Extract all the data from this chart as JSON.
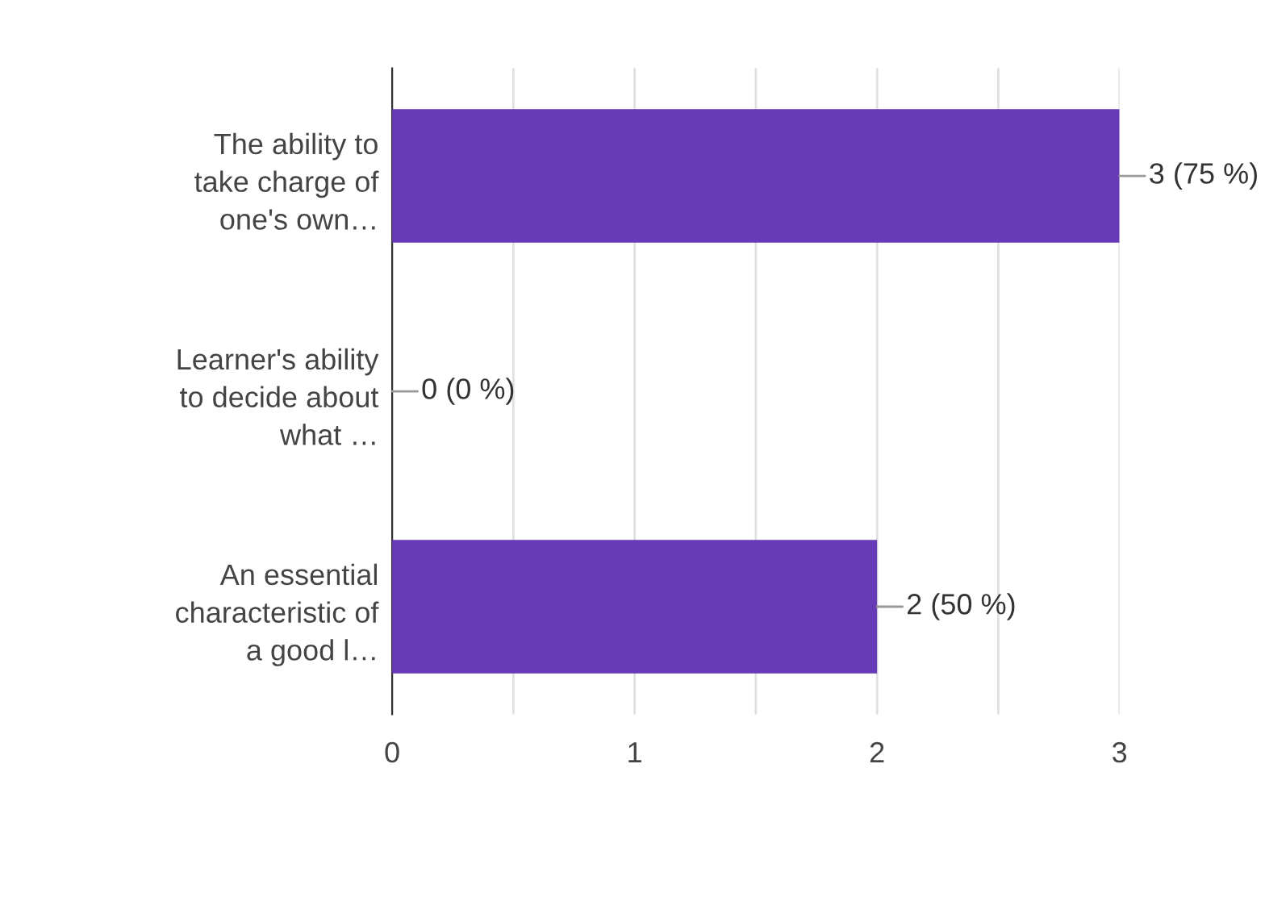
{
  "chart_data": {
    "type": "bar",
    "orientation": "horizontal",
    "categories": [
      "The ability to\ntake charge of\none's own…",
      "Learner's ability\nto decide about\nwhat …",
      "An essential\ncharacteristic of\na good l…"
    ],
    "values": [
      3,
      0,
      2
    ],
    "color": "#673ab7",
    "value_labels": [
      "3 (75 %)",
      "0 (0 %)",
      "2 (50 %)"
    ],
    "xlim": [
      0,
      3
    ],
    "xticks": [
      0,
      {
        "value": 0.5,
        "label": null
      },
      1,
      {
        "value": 1.5,
        "label": null
      },
      2,
      {
        "value": 2.5,
        "label": null
      },
      3
    ],
    "grid": "x"
  }
}
